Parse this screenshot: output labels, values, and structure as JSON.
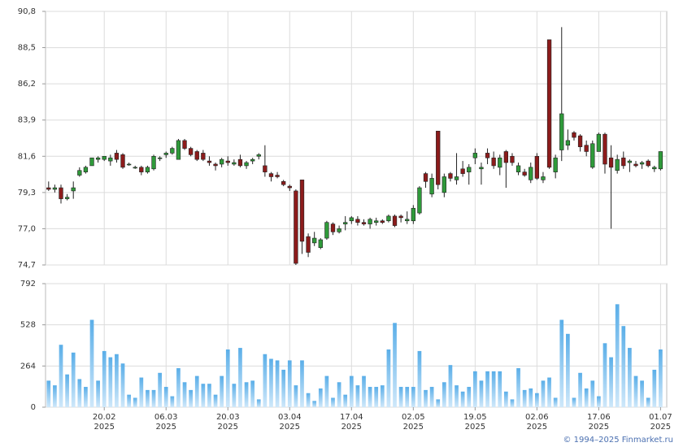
{
  "chart_data": {
    "type": "candlestick",
    "open": [
      79.6,
      79.5,
      79.6,
      78.9,
      79.4,
      80.4,
      80.6,
      81.0,
      81.4,
      81.4,
      81.3,
      81.8,
      81.7,
      81.1,
      80.9,
      80.9,
      80.6,
      80.8,
      81.5,
      81.7,
      81.8,
      81.4,
      82.6,
      82.1,
      81.9,
      81.8,
      81.3,
      81.1,
      81.1,
      81.3,
      81.1,
      81.4,
      81.0,
      81.3,
      81.6,
      81.0,
      80.5,
      80.4,
      80.0,
      79.7,
      79.4,
      80.1,
      76.5,
      76.1,
      75.8,
      76.4,
      77.3,
      76.8,
      77.3,
      77.5,
      77.6,
      77.4,
      77.3,
      77.4,
      77.5,
      77.5,
      77.8,
      77.8,
      77.5,
      77.5,
      78.0,
      80.5,
      79.2,
      83.2,
      79.3,
      80.5,
      80.1,
      80.8,
      80.6,
      81.5,
      80.8,
      81.8,
      81.5,
      80.9,
      81.9,
      81.6,
      80.6,
      80.6,
      80.1,
      81.6,
      80.1,
      89.0,
      80.6,
      82.0,
      82.3,
      83.1,
      82.9,
      82.3,
      80.9,
      81.9,
      83.0,
      81.5,
      80.7,
      81.5,
      81.2,
      81.1,
      81.1,
      81.3,
      80.8,
      80.8
    ],
    "high": [
      80.0,
      79.8,
      79.8,
      79.2,
      80.0,
      80.9,
      81.0,
      81.5,
      81.6,
      81.6,
      81.7,
      82.0,
      81.8,
      81.2,
      81.0,
      81.0,
      81.0,
      81.7,
      81.6,
      81.9,
      82.2,
      82.7,
      82.7,
      82.2,
      82.0,
      82.0,
      81.6,
      81.2,
      81.5,
      81.6,
      81.4,
      81.7,
      81.3,
      81.5,
      81.8,
      82.3,
      80.6,
      80.6,
      80.1,
      79.8,
      79.5,
      80.1,
      76.7,
      76.8,
      76.4,
      77.5,
      77.4,
      77.2,
      77.8,
      77.8,
      77.8,
      77.6,
      77.7,
      77.7,
      77.6,
      77.9,
      77.9,
      77.9,
      78.1,
      78.5,
      79.7,
      80.6,
      80.5,
      83.2,
      80.5,
      80.6,
      81.8,
      81.3,
      81.1,
      82.1,
      81.2,
      82.1,
      81.9,
      81.7,
      82.0,
      81.8,
      81.2,
      80.8,
      81.2,
      81.8,
      80.6,
      89.0,
      81.7,
      89.8,
      83.3,
      83.2,
      83.0,
      82.6,
      82.6,
      83.1,
      83.1,
      82.3,
      81.7,
      81.9,
      81.4,
      81.3,
      81.3,
      81.4,
      81.0,
      81.9
    ],
    "low": [
      79.4,
      79.3,
      78.6,
      78.8,
      78.9,
      80.3,
      80.5,
      81.0,
      81.2,
      81.3,
      81.0,
      81.2,
      80.8,
      81.0,
      80.8,
      80.4,
      80.5,
      80.7,
      81.3,
      81.5,
      81.7,
      81.4,
      82.0,
      81.6,
      81.3,
      81.3,
      81.0,
      80.7,
      80.9,
      81.0,
      81.0,
      80.9,
      80.8,
      81.1,
      81.4,
      80.3,
      80.0,
      80.2,
      79.7,
      79.4,
      74.7,
      75.4,
      75.2,
      75.9,
      75.7,
      76.3,
      76.6,
      76.7,
      76.9,
      77.3,
      77.2,
      77.2,
      77.0,
      77.2,
      77.3,
      77.4,
      77.1,
      77.4,
      77.3,
      77.3,
      77.9,
      79.6,
      79.0,
      79.5,
      79.0,
      80.0,
      79.8,
      80.3,
      79.8,
      81.1,
      79.8,
      81.1,
      80.8,
      80.4,
      79.6,
      81.0,
      80.4,
      80.3,
      79.9,
      80.1,
      79.9,
      80.8,
      80.2,
      81.3,
      82.0,
      82.6,
      81.9,
      81.6,
      80.8,
      81.9,
      80.5,
      77.0,
      80.5,
      80.8,
      80.6,
      80.9,
      80.8,
      80.9,
      80.6,
      80.7
    ],
    "close": [
      79.5,
      79.6,
      78.9,
      79.0,
      79.6,
      80.7,
      80.9,
      81.5,
      81.5,
      81.6,
      81.5,
      81.4,
      80.9,
      81.1,
      80.9,
      80.6,
      80.9,
      81.6,
      81.5,
      81.8,
      82.1,
      82.6,
      82.1,
      81.7,
      81.4,
      81.4,
      81.2,
      81.0,
      81.4,
      81.2,
      81.2,
      81.0,
      81.2,
      81.4,
      81.7,
      80.6,
      80.3,
      80.3,
      79.8,
      79.6,
      74.8,
      76.2,
      75.5,
      76.4,
      76.3,
      77.4,
      76.8,
      77.0,
      77.4,
      77.7,
      77.4,
      77.3,
      77.6,
      77.5,
      77.4,
      77.8,
      77.2,
      77.7,
      77.6,
      78.3,
      79.6,
      80.0,
      80.2,
      79.8,
      80.3,
      80.2,
      80.3,
      80.5,
      80.9,
      81.8,
      80.9,
      81.5,
      81.0,
      81.5,
      81.2,
      81.2,
      81.0,
      80.4,
      80.9,
      80.2,
      80.3,
      80.9,
      81.5,
      84.3,
      82.6,
      82.8,
      82.2,
      81.9,
      82.4,
      83.0,
      81.1,
      80.9,
      81.4,
      81.0,
      81.3,
      81.0,
      81.2,
      81.0,
      80.9,
      81.9
    ],
    "volume": [
      170,
      140,
      400,
      210,
      350,
      180,
      130,
      560,
      170,
      360,
      320,
      340,
      280,
      80,
      60,
      190,
      110,
      110,
      220,
      130,
      70,
      250,
      160,
      110,
      200,
      150,
      150,
      80,
      200,
      370,
      150,
      380,
      160,
      170,
      50,
      340,
      310,
      300,
      240,
      300,
      140,
      300,
      90,
      40,
      120,
      200,
      60,
      160,
      80,
      200,
      140,
      200,
      130,
      130,
      140,
      370,
      540,
      130,
      130,
      130,
      360,
      110,
      130,
      50,
      160,
      270,
      140,
      100,
      130,
      230,
      170,
      230,
      230,
      230,
      100,
      50,
      250,
      110,
      120,
      90,
      170,
      190,
      60,
      560,
      470,
      60,
      220,
      120,
      170,
      70,
      410,
      320,
      660,
      520,
      380,
      200,
      170,
      60,
      240,
      370
    ],
    "up_color": "#2f9a3a",
    "down_color": "#8c1b1b",
    "volume_color": "#8fcaf2",
    "xlim": [
      -0.5,
      100
    ],
    "xticks": [
      {
        "value": 9,
        "label": "20.02",
        "year": "2025"
      },
      {
        "value": 19,
        "label": "06.03",
        "year": "2025"
      },
      {
        "value": 29,
        "label": "20.03",
        "year": "2025"
      },
      {
        "value": 39,
        "label": "03.04",
        "year": "2025"
      },
      {
        "value": 49,
        "label": "17.04",
        "year": "2025"
      },
      {
        "value": 59,
        "label": "02.05",
        "year": "2025"
      },
      {
        "value": 69,
        "label": "19.05",
        "year": "2025"
      },
      {
        "value": 79,
        "label": "02.06",
        "year": "2025"
      },
      {
        "value": 89,
        "label": "17.06",
        "year": "2025"
      },
      {
        "value": 99,
        "label": "01.07",
        "year": "2025"
      }
    ],
    "ylim": [
      74.7,
      90.8
    ],
    "yticks": [
      {
        "value": 74.7,
        "label": "74,7"
      },
      {
        "value": 77.0,
        "label": "77,0"
      },
      {
        "value": 79.3,
        "label": "79,3"
      },
      {
        "value": 81.6,
        "label": "81,6"
      },
      {
        "value": 83.9,
        "label": "83,9"
      },
      {
        "value": 86.2,
        "label": "86,2"
      },
      {
        "value": 88.5,
        "label": "88,5"
      },
      {
        "value": 90.8,
        "label": "90,8"
      }
    ],
    "volume_ylim": [
      0,
      792
    ],
    "volume_ticks": [
      0,
      264,
      528,
      792
    ],
    "grid": true
  },
  "footer": "© 1994–2025 Finmarket.ru"
}
